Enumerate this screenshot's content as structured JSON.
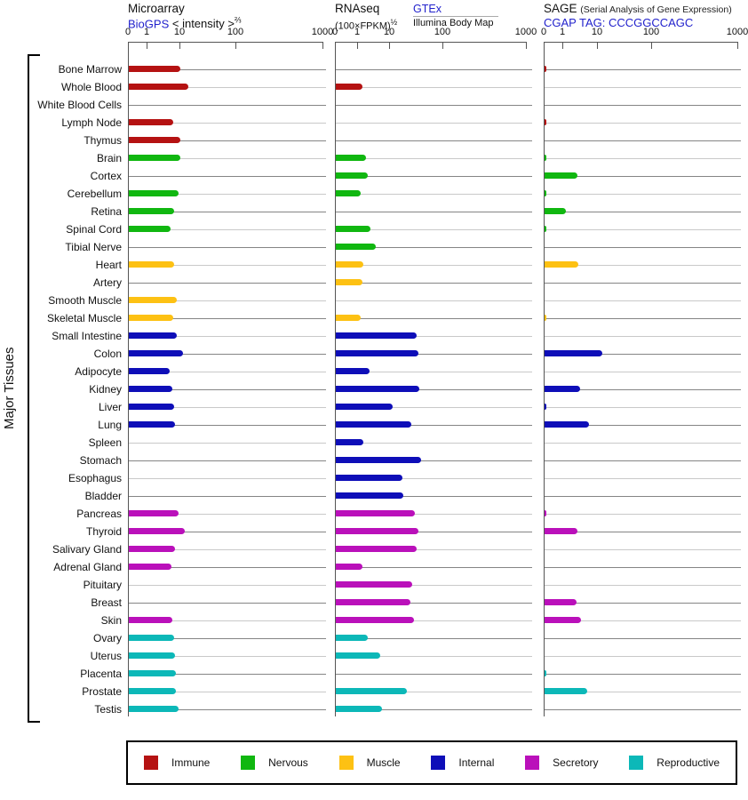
{
  "y_axis_label": "Major Tissues",
  "panels": {
    "microarray": {
      "title": "Microarray",
      "source_link": "BioGPS",
      "unit": "< intensity >",
      "unit_exponent": "⅔",
      "ticks": [
        "0",
        "1",
        "10",
        "100",
        "1000"
      ]
    },
    "rnaseq": {
      "title": "RNAseq",
      "unit": "(100×FPKM)",
      "unit_exponent": "½",
      "source_link": "GTEx",
      "source_secondary": "Illumina Body Map",
      "ticks": [
        "0",
        "1",
        "10",
        "100",
        "1000"
      ]
    },
    "sage": {
      "title": "SAGE",
      "subtitle": "(Serial Analysis of Gene Expression)",
      "source_link": "CGAP TAG: CCCGGCCAGC",
      "ticks": [
        "0",
        "1",
        "10",
        "100",
        "1000"
      ]
    }
  },
  "legend": [
    {
      "key": "immune",
      "label": "Immune",
      "color": "#b51212"
    },
    {
      "key": "nervous",
      "label": "Nervous",
      "color": "#10b710"
    },
    {
      "key": "muscle",
      "label": "Muscle",
      "color": "#fdc113"
    },
    {
      "key": "internal",
      "label": "Internal",
      "color": "#0e0eb8"
    },
    {
      "key": "secretory",
      "label": "Secretory",
      "color": "#ba10ba"
    },
    {
      "key": "reproductive",
      "label": "Reproductive",
      "color": "#0cb8b8"
    }
  ],
  "chart_data": {
    "type": "bar",
    "orientation": "horizontal",
    "x_scale": "power scale with ticks 0, 1, 10, 100, 1000",
    "xlim": [
      0,
      1000
    ],
    "series_names": [
      "Microarray",
      "RNAseq",
      "SAGE"
    ],
    "zero_tick_note": "values of 0.1 represent a tiny tick mark at the axis origin; 0 means no bar",
    "tissues": [
      {
        "name": "Bone Marrow",
        "group": "immune",
        "microarray": 10,
        "rnaseq": 0,
        "sage": 0.1
      },
      {
        "name": "Whole Blood",
        "group": "immune",
        "microarray": 14,
        "rnaseq": 1.4,
        "sage": 0
      },
      {
        "name": "White Blood Cells",
        "group": "immune",
        "microarray": 0,
        "rnaseq": 0,
        "sage": 0
      },
      {
        "name": "Lymph Node",
        "group": "immune",
        "microarray": 6,
        "rnaseq": 0,
        "sage": 0.1
      },
      {
        "name": "Thymus",
        "group": "immune",
        "microarray": 10,
        "rnaseq": 0,
        "sage": 0
      },
      {
        "name": "Brain",
        "group": "nervous",
        "microarray": 10,
        "rnaseq": 1.8,
        "sage": 0.1
      },
      {
        "name": "Cortex",
        "group": "nervous",
        "microarray": 0,
        "rnaseq": 2.0,
        "sage": 2.5
      },
      {
        "name": "Cerebellum",
        "group": "nervous",
        "microarray": 9,
        "rnaseq": 1.2,
        "sage": 0.1
      },
      {
        "name": "Retina",
        "group": "nervous",
        "microarray": 6.5,
        "rnaseq": 0,
        "sage": 1.2
      },
      {
        "name": "Spinal Cord",
        "group": "nervous",
        "microarray": 5,
        "rnaseq": 2.5,
        "sage": 0.1
      },
      {
        "name": "Tibial Nerve",
        "group": "nervous",
        "microarray": 0,
        "rnaseq": 3.6,
        "sage": 0
      },
      {
        "name": "Heart",
        "group": "muscle",
        "microarray": 6.3,
        "rnaseq": 1.5,
        "sage": 2.8
      },
      {
        "name": "Artery",
        "group": "muscle",
        "microarray": 0,
        "rnaseq": 1.4,
        "sage": 0
      },
      {
        "name": "Smooth Muscle",
        "group": "muscle",
        "microarray": 8,
        "rnaseq": 0,
        "sage": 0
      },
      {
        "name": "Skeletal Muscle",
        "group": "muscle",
        "microarray": 6,
        "rnaseq": 1.2,
        "sage": 0.1
      },
      {
        "name": "Small Intestine",
        "group": "internal",
        "microarray": 7.7,
        "rnaseq": 31,
        "sage": 0
      },
      {
        "name": "Colon",
        "group": "internal",
        "microarray": 11,
        "rnaseq": 34,
        "sage": 12
      },
      {
        "name": "Adipocyte",
        "group": "internal",
        "microarray": 4.6,
        "rnaseq": 2.3,
        "sage": 0
      },
      {
        "name": "Kidney",
        "group": "internal",
        "microarray": 5.6,
        "rnaseq": 35,
        "sage": 3
      },
      {
        "name": "Liver",
        "group": "internal",
        "microarray": 6.3,
        "rnaseq": 11,
        "sage": 0.1
      },
      {
        "name": "Lung",
        "group": "internal",
        "microarray": 7,
        "rnaseq": 25,
        "sage": 5.5
      },
      {
        "name": "Spleen",
        "group": "internal",
        "microarray": 0,
        "rnaseq": 1.5,
        "sage": 0
      },
      {
        "name": "Stomach",
        "group": "internal",
        "microarray": 0,
        "rnaseq": 38,
        "sage": 0
      },
      {
        "name": "Esophagus",
        "group": "internal",
        "microarray": 0,
        "rnaseq": 17,
        "sage": 0
      },
      {
        "name": "Bladder",
        "group": "internal",
        "microarray": 0,
        "rnaseq": 18,
        "sage": 0
      },
      {
        "name": "Pancreas",
        "group": "secretory",
        "microarray": 8.6,
        "rnaseq": 29,
        "sage": 0.1
      },
      {
        "name": "Thyroid",
        "group": "secretory",
        "microarray": 12,
        "rnaseq": 34,
        "sage": 2.5
      },
      {
        "name": "Salivary Gland",
        "group": "secretory",
        "microarray": 6.9,
        "rnaseq": 32,
        "sage": 0
      },
      {
        "name": "Adrenal Gland",
        "group": "secretory",
        "microarray": 5.3,
        "rnaseq": 1.4,
        "sage": 0
      },
      {
        "name": "Pituitary",
        "group": "secretory",
        "microarray": 0,
        "rnaseq": 26,
        "sage": 0
      },
      {
        "name": "Breast",
        "group": "secretory",
        "microarray": 0,
        "rnaseq": 24,
        "sage": 2.4
      },
      {
        "name": "Skin",
        "group": "secretory",
        "microarray": 5.6,
        "rnaseq": 28,
        "sage": 3.2
      },
      {
        "name": "Ovary",
        "group": "reproductive",
        "microarray": 6.3,
        "rnaseq": 2.0,
        "sage": 0
      },
      {
        "name": "Uterus",
        "group": "reproductive",
        "microarray": 6.9,
        "rnaseq": 5.0,
        "sage": 0
      },
      {
        "name": "Placenta",
        "group": "reproductive",
        "microarray": 7.2,
        "rnaseq": 0,
        "sage": 0.1
      },
      {
        "name": "Prostate",
        "group": "reproductive",
        "microarray": 7.2,
        "rnaseq": 21,
        "sage": 5
      },
      {
        "name": "Testis",
        "group": "reproductive",
        "microarray": 9,
        "rnaseq": 5.6,
        "sage": 0
      }
    ]
  }
}
